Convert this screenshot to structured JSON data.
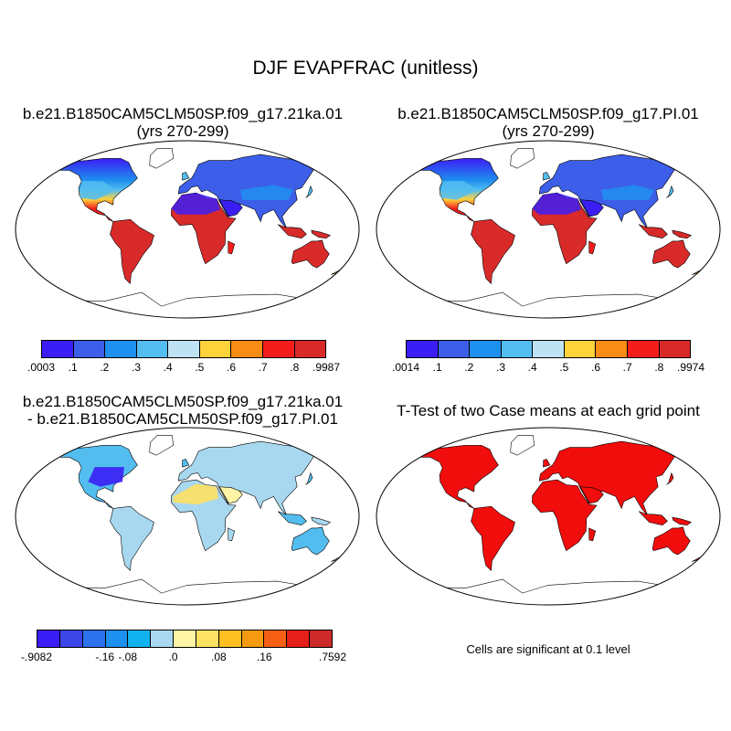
{
  "figure": {
    "title": "DJF EVAPFRAC (unitless)"
  },
  "panels": [
    {
      "title_line1": "b.e21.B1850CAM5CLM50SP.f09_g17.21ka.01",
      "title_line2": "(yrs 270-299)"
    },
    {
      "title_line1": "b.e21.B1850CAM5CLM50SP.f09_g17.PI.01",
      "title_line2": "(yrs 270-299)"
    },
    {
      "title_line1": "b.e21.B1850CAM5CLM50SP.f09_g17.21ka.01",
      "title_line2": "- b.e21.B1850CAM5CLM50SP.f09_g17.PI.01"
    },
    {
      "title_line1": "T-Test of two Case means at each grid point",
      "note": "Cells are significant at 0.1 level"
    }
  ],
  "colorbars": [
    {
      "colors": [
        "#3b1ef5",
        "#3d5ee8",
        "#1e90ef",
        "#53bdf0",
        "#bfe2f3",
        "#fdd23b",
        "#f98c14",
        "#f41d1a",
        "#d92a2a"
      ],
      "labels": [
        ".0003",
        ".1",
        ".2",
        ".3",
        ".4",
        ".5",
        ".6",
        ".7",
        ".8",
        ".9987"
      ]
    },
    {
      "colors": [
        "#3b1ef5",
        "#3d5ee8",
        "#1e90ef",
        "#53bdf0",
        "#bfe2f3",
        "#fdd23b",
        "#f98c14",
        "#f41d1a",
        "#d92a2a"
      ],
      "labels": [
        ".0014",
        ".1",
        ".2",
        ".3",
        ".4",
        ".5",
        ".6",
        ".7",
        ".8",
        ".9974"
      ]
    },
    {
      "colors": [
        "#3b1ef5",
        "#3c45e6",
        "#2c72ec",
        "#1e90ef",
        "#12b2f0",
        "#a8d8f0",
        "#fff4a6",
        "#fde162",
        "#fcc023",
        "#f89b12",
        "#f45f14",
        "#e51f1a",
        "#cc2a2a"
      ],
      "labels": [
        "-.9082",
        "-.16",
        "-.08",
        ".0",
        ".08",
        ".16",
        ".7592"
      ]
    }
  ],
  "chart_data": {
    "type": "heatmap",
    "variable": "EVAPFRAC",
    "season": "DJF",
    "units": "unitless",
    "panel_ranges": [
      {
        "panel": "21ka",
        "min": 0.0003,
        "max": 0.9987,
        "levels": [
          0.1,
          0.2,
          0.3,
          0.4,
          0.5,
          0.6,
          0.7,
          0.8
        ]
      },
      {
        "panel": "PI",
        "min": 0.0014,
        "max": 0.9974,
        "levels": [
          0.1,
          0.2,
          0.3,
          0.4,
          0.5,
          0.6,
          0.7,
          0.8
        ]
      },
      {
        "panel": "difference",
        "min": -0.9082,
        "max": 0.7592,
        "levels": [
          -0.16,
          -0.08,
          0.0,
          0.08,
          0.16
        ]
      },
      {
        "panel": "t-test",
        "significance_level": 0.1
      }
    ]
  }
}
